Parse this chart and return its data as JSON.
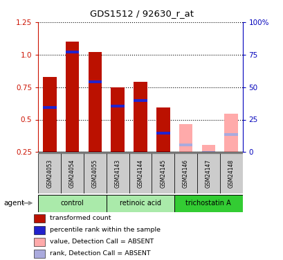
{
  "title": "GDS1512 / 92630_r_at",
  "samples": [
    "GSM24053",
    "GSM24054",
    "GSM24055",
    "GSM24143",
    "GSM24144",
    "GSM24145",
    "GSM24146",
    "GSM24147",
    "GSM24148"
  ],
  "red_values": [
    0.83,
    1.1,
    1.02,
    0.75,
    0.79,
    0.595,
    0.0,
    0.0,
    0.0
  ],
  "blue_values": [
    0.595,
    1.02,
    0.79,
    0.605,
    0.645,
    0.395,
    0.0,
    0.0,
    0.0
  ],
  "pink_values": [
    0.0,
    0.0,
    0.0,
    0.0,
    0.0,
    0.0,
    0.465,
    0.305,
    0.545
  ],
  "lavender_values": [
    0.0,
    0.0,
    0.0,
    0.0,
    0.0,
    0.0,
    0.305,
    0.245,
    0.385
  ],
  "absent": [
    false,
    false,
    false,
    false,
    false,
    false,
    true,
    true,
    true
  ],
  "ylim_left": [
    0.25,
    1.25
  ],
  "ylim_right": [
    0,
    100
  ],
  "yticks_left": [
    0.25,
    0.5,
    0.75,
    1.0,
    1.25
  ],
  "yticks_right": [
    0,
    25,
    50,
    75,
    100
  ],
  "ytick_labels_right": [
    "0",
    "25",
    "50",
    "75",
    "100%"
  ],
  "left_color": "#cc1100",
  "right_color": "#0000bb",
  "bar_width": 0.6,
  "group_boundaries": [
    [
      0,
      2,
      "control",
      "#aaeaaa"
    ],
    [
      3,
      5,
      "retinoic acid",
      "#aaeaaa"
    ],
    [
      6,
      8,
      "trichostatin A",
      "#33cc33"
    ]
  ],
  "bar_color_present": "#bb1100",
  "bar_color_blue": "#2222cc",
  "bar_color_pink": "#ffaaaa",
  "bar_color_lavender": "#aaaadd",
  "legend_items": [
    {
      "label": "transformed count",
      "color": "#bb1100"
    },
    {
      "label": "percentile rank within the sample",
      "color": "#2222cc"
    },
    {
      "label": "value, Detection Call = ABSENT",
      "color": "#ffaaaa"
    },
    {
      "label": "rank, Detection Call = ABSENT",
      "color": "#aaaadd"
    }
  ]
}
